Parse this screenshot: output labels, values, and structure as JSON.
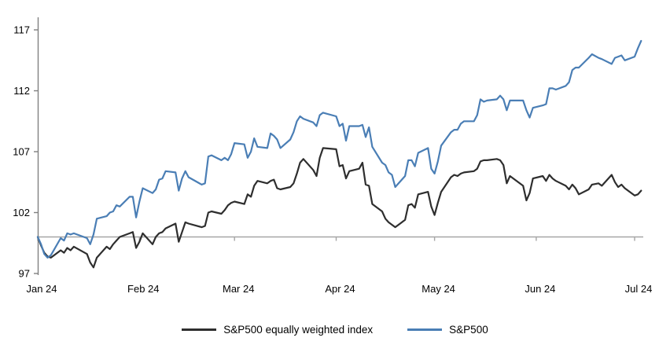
{
  "chart_data": {
    "type": "line",
    "title": "",
    "xlabel": "",
    "ylabel": "",
    "x_unit": "day-of-year 2024 (trading days)",
    "ylim": [
      97,
      117
    ],
    "grid": false,
    "baseline_value": 100,
    "legend_position": "bottom-center",
    "y_ticks": [
      117,
      112,
      107,
      102,
      97
    ],
    "x_tick_days": [
      1,
      32,
      61,
      92,
      122,
      153,
      183
    ],
    "x_tick_labels": [
      "Jan 24",
      "Feb 24",
      "Mar 24",
      "Apr 24",
      "May 24",
      "Jun 24",
      "Jul 24"
    ],
    "x": [
      1,
      2,
      3,
      4,
      5,
      8,
      9,
      10,
      11,
      12,
      16,
      17,
      18,
      19,
      22,
      23,
      24,
      25,
      26,
      29,
      30,
      31,
      32,
      33,
      36,
      37,
      38,
      39,
      40,
      43,
      44,
      45,
      46,
      47,
      51,
      52,
      53,
      54,
      57,
      58,
      59,
      60,
      61,
      64,
      65,
      66,
      67,
      68,
      71,
      72,
      73,
      74,
      75,
      78,
      79,
      80,
      81,
      82,
      85,
      86,
      87,
      88,
      92,
      93,
      94,
      95,
      96,
      99,
      100,
      101,
      102,
      103,
      106,
      107,
      108,
      109,
      110,
      113,
      114,
      115,
      116,
      117,
      120,
      121,
      122,
      123,
      124,
      127,
      128,
      129,
      130,
      131,
      134,
      135,
      136,
      137,
      138,
      141,
      142,
      143,
      144,
      145,
      149,
      150,
      151,
      152,
      155,
      156,
      157,
      158,
      159,
      162,
      163,
      164,
      165,
      166,
      169,
      170,
      172,
      173,
      176,
      177,
      178,
      179,
      180,
      183,
      184,
      185
    ],
    "series": [
      {
        "name": "S&P500 equally weighted index",
        "color": "#2e2e2e",
        "values": [
          100.0,
          99.3,
          98.7,
          98.4,
          98.3,
          98.9,
          98.7,
          99.1,
          98.9,
          99.2,
          98.6,
          97.9,
          97.5,
          98.3,
          99.2,
          99.0,
          99.4,
          99.7,
          100.0,
          100.3,
          100.4,
          99.1,
          99.6,
          100.3,
          99.4,
          100.0,
          100.3,
          100.4,
          100.7,
          101.1,
          99.6,
          100.4,
          101.2,
          101.1,
          100.8,
          100.9,
          102.0,
          102.1,
          101.9,
          102.2,
          102.6,
          102.8,
          102.9,
          102.7,
          103.5,
          103.3,
          104.2,
          104.6,
          104.4,
          104.6,
          104.7,
          104.0,
          103.9,
          104.1,
          104.4,
          105.2,
          106.1,
          106.4,
          105.5,
          105.0,
          106.5,
          107.3,
          107.2,
          105.8,
          105.9,
          104.8,
          105.4,
          105.6,
          106.1,
          104.3,
          104.2,
          102.7,
          102.1,
          101.5,
          101.2,
          101.0,
          100.8,
          101.4,
          102.6,
          102.7,
          102.4,
          103.5,
          103.7,
          102.5,
          101.8,
          102.8,
          103.7,
          104.9,
          105.1,
          105.0,
          105.2,
          105.3,
          105.4,
          105.6,
          106.2,
          106.3,
          106.3,
          106.4,
          106.3,
          105.9,
          104.4,
          105.0,
          104.2,
          103.0,
          103.6,
          104.8,
          105.0,
          104.6,
          105.1,
          104.8,
          104.6,
          104.2,
          103.9,
          104.3,
          104.0,
          103.5,
          103.9,
          104.3,
          104.4,
          104.2,
          105.1,
          104.5,
          104.1,
          104.3,
          104.0,
          103.4,
          103.5,
          103.8
        ]
      },
      {
        "name": "S&P500",
        "color": "#4a7eb5",
        "values": [
          100.0,
          99.4,
          98.6,
          98.3,
          98.5,
          99.9,
          99.7,
          100.3,
          100.2,
          100.3,
          99.9,
          99.4,
          100.2,
          101.5,
          101.7,
          102.0,
          102.1,
          102.6,
          102.5,
          103.3,
          103.3,
          101.6,
          102.9,
          104.0,
          103.6,
          103.9,
          104.7,
          104.8,
          105.4,
          105.3,
          103.8,
          104.8,
          105.4,
          104.9,
          104.3,
          104.4,
          106.6,
          106.7,
          106.3,
          106.5,
          106.3,
          106.8,
          107.7,
          107.6,
          106.5,
          107.0,
          108.1,
          107.4,
          107.3,
          108.5,
          108.3,
          108.0,
          107.3,
          108.0,
          108.6,
          109.5,
          109.9,
          109.7,
          109.4,
          109.1,
          110.0,
          110.2,
          109.9,
          109.1,
          109.3,
          107.9,
          109.1,
          109.1,
          109.2,
          108.2,
          109.0,
          107.4,
          106.1,
          105.9,
          105.3,
          105.1,
          104.1,
          105.0,
          106.3,
          106.3,
          105.8,
          106.9,
          107.3,
          105.6,
          105.2,
          106.2,
          107.5,
          108.6,
          108.8,
          108.8,
          109.3,
          109.5,
          109.5,
          110.0,
          111.3,
          111.1,
          111.2,
          111.3,
          111.6,
          111.3,
          110.4,
          111.2,
          111.2,
          110.4,
          109.8,
          110.6,
          110.8,
          110.9,
          112.2,
          112.2,
          112.1,
          112.4,
          112.7,
          113.7,
          113.9,
          113.9,
          114.7,
          115.0,
          114.7,
          114.6,
          114.2,
          114.7,
          114.8,
          114.9,
          114.5,
          114.8,
          115.5,
          116.1
        ]
      }
    ]
  },
  "legend": {
    "items": [
      {
        "label": "S&P500 equally weighted index",
        "color": "#2e2e2e"
      },
      {
        "label": "S&P500",
        "color": "#4a7eb5"
      }
    ]
  },
  "style": {
    "axis_color": "#808080",
    "baseline_color": "#a6a6a6",
    "tick_text_color": "#000000"
  }
}
